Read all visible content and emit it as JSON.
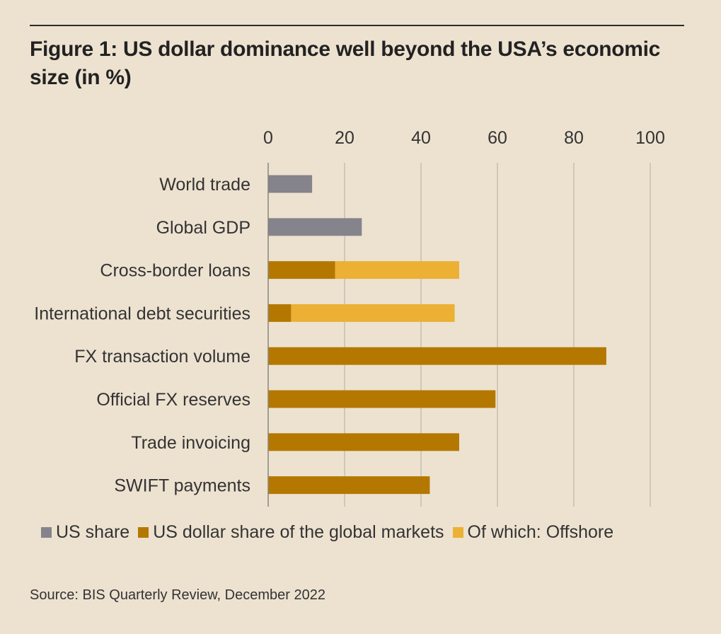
{
  "title": "Figure 1: US dollar dominance well beyond the USA’s economic size (in %)",
  "source": "Source: BIS Quarterly Review, December 2022",
  "colors": {
    "background": "#EDE2D0",
    "us_share": "#85838C",
    "usd_share": "#B47800",
    "offshore": "#EBB034",
    "gridline": "#BEB6A6",
    "axis": "#8A857A"
  },
  "chart_data": {
    "type": "bar",
    "orientation": "horizontal",
    "stacked": true,
    "categories": [
      "World trade",
      "Global GDP",
      "Cross-border loans",
      "International debt securities",
      "FX transaction volume",
      "Official FX reserves",
      "Trade invoicing",
      "SWIFT payments"
    ],
    "series": [
      {
        "name": "US share",
        "color_key": "us_share",
        "values": [
          11.5,
          24.5,
          0,
          0,
          0,
          0,
          0,
          0
        ]
      },
      {
        "name": "US dollar share of the global markets",
        "color_key": "usd_share",
        "values": [
          0,
          0,
          17.5,
          6,
          88.5,
          59.5,
          50,
          42.3
        ]
      },
      {
        "name": "Of which: Offshore",
        "color_key": "offshore",
        "values": [
          0,
          0,
          32.5,
          42.8,
          0,
          0,
          0,
          0
        ]
      }
    ],
    "xlim": [
      0,
      100
    ],
    "xticks": [
      0,
      20,
      40,
      60,
      80,
      100
    ],
    "xaxis_position": "top",
    "grid": true,
    "legend_position": "bottom-left"
  }
}
